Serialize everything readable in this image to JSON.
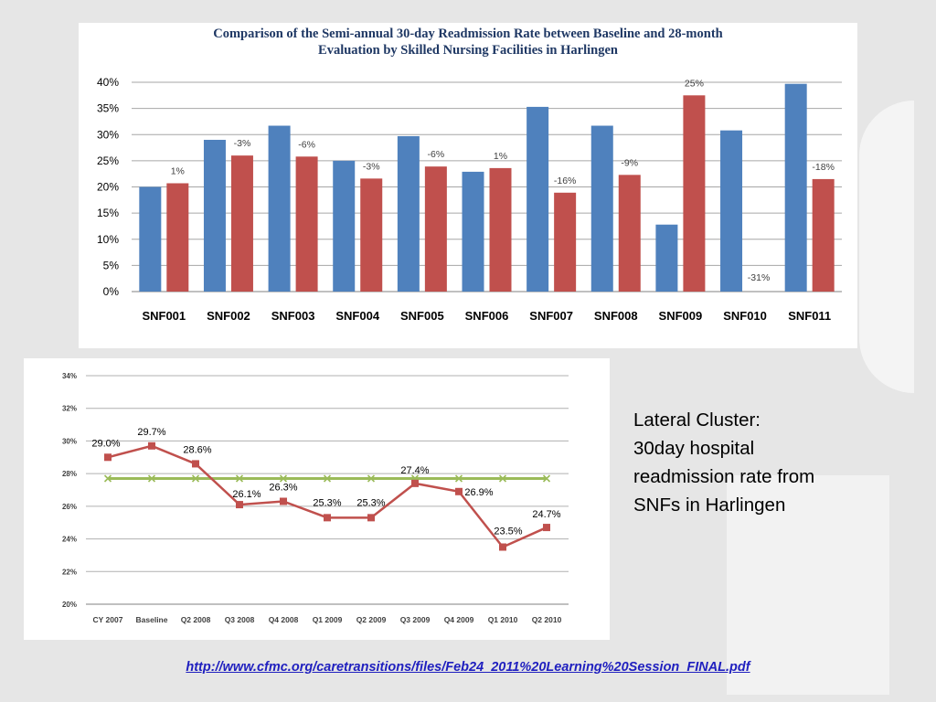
{
  "colors": {
    "baseline": "#4f81bd",
    "evaluation": "#c0504d",
    "line_actual": "#c0504d",
    "line_average": "#9bbb59",
    "link": "#1f1fbf"
  },
  "side_text": {
    "line1": "Lateral Cluster:",
    "line2": "30day hospital",
    "line3": "readmission rate from",
    "line4": "SNFs in Harlingen"
  },
  "source_link": "http://www.cfmc.org/caretransitions/files/Feb24_2011%20Learning%20Session_FINAL.pdf",
  "chart_data": [
    {
      "type": "bar",
      "title_line1": "Comparison of the Semi-annual 30-day Readmission Rate between Baseline and 28-month",
      "title_line2": "Evaluation by Skilled Nursing Facilities in Harlingen",
      "categories": [
        "SNF001",
        "SNF002",
        "SNF003",
        "SNF004",
        "SNF005",
        "SNF006",
        "SNF007",
        "SNF008",
        "SNF009",
        "SNF010",
        "SNF011"
      ],
      "series": [
        {
          "values": [
            20,
            29,
            31.7,
            25,
            29.7,
            22.9,
            35.3,
            31.7,
            12.8,
            30.8,
            39.7
          ]
        },
        {
          "values": [
            20.7,
            26,
            25.8,
            21.6,
            23.9,
            23.6,
            18.9,
            22.3,
            37.5,
            0,
            21.5
          ]
        }
      ],
      "data_labels": [
        "1%",
        "-3%",
        "-6%",
        "-3%",
        "-6%",
        "1%",
        "-16%",
        "-9%",
        "25%",
        "-31%",
        "-18%"
      ],
      "yticks": [
        "0%",
        "5%",
        "10%",
        "15%",
        "20%",
        "25%",
        "30%",
        "35%",
        "40%"
      ],
      "ylim": [
        0,
        40
      ],
      "grid": true
    },
    {
      "type": "line",
      "categories": [
        "CY 2007",
        "Baseline",
        "Q2 2008",
        "Q3 2008",
        "Q4 2008",
        "Q1 2009",
        "Q2 2009",
        "Q3 2009",
        "Q4 2009",
        "Q1 2010",
        "Q2 2010"
      ],
      "series": [
        {
          "values": [
            29.0,
            29.7,
            28.6,
            26.1,
            26.3,
            25.3,
            25.3,
            27.4,
            26.9,
            23.5,
            24.7
          ]
        },
        {
          "values": [
            27.7,
            27.7,
            27.7,
            27.7,
            27.7,
            27.7,
            27.7,
            27.7,
            27.7,
            27.7,
            27.7
          ]
        }
      ],
      "data_labels": [
        "29.0%",
        "29.7%",
        "28.6%",
        "26.1%",
        "26.3%",
        "25.3%",
        "25.3%",
        "27.4%",
        "26.9%",
        "23.5%",
        "24.7%"
      ],
      "yticks": [
        "20%",
        "22%",
        "24%",
        "26%",
        "28%",
        "30%",
        "32%",
        "34%"
      ],
      "ylim": [
        20,
        34
      ],
      "grid": true
    }
  ]
}
